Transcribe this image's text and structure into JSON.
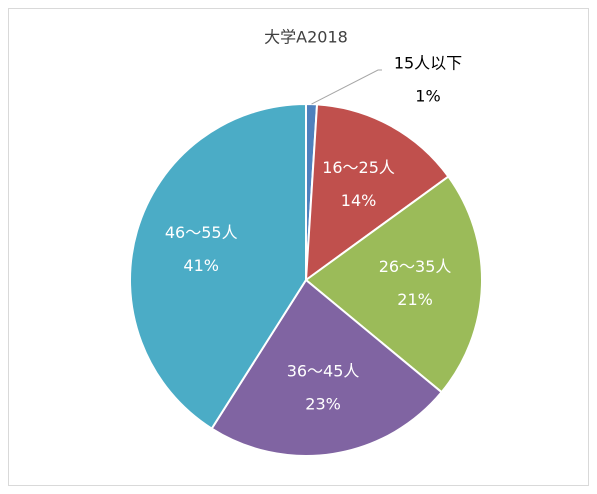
{
  "chart_data": {
    "type": "pie",
    "title": "大学A2018",
    "categories": [
      "15人以下",
      "16～25人",
      "26～35人",
      "36～45人",
      "46～55人"
    ],
    "values": [
      1,
      14,
      21,
      23,
      41
    ],
    "value_labels": [
      "1%",
      "14%",
      "21%",
      "23%",
      "41%"
    ],
    "colors": [
      "#4f81bd",
      "#c0504d",
      "#9bbb59",
      "#8064a2",
      "#4bacc6"
    ]
  }
}
